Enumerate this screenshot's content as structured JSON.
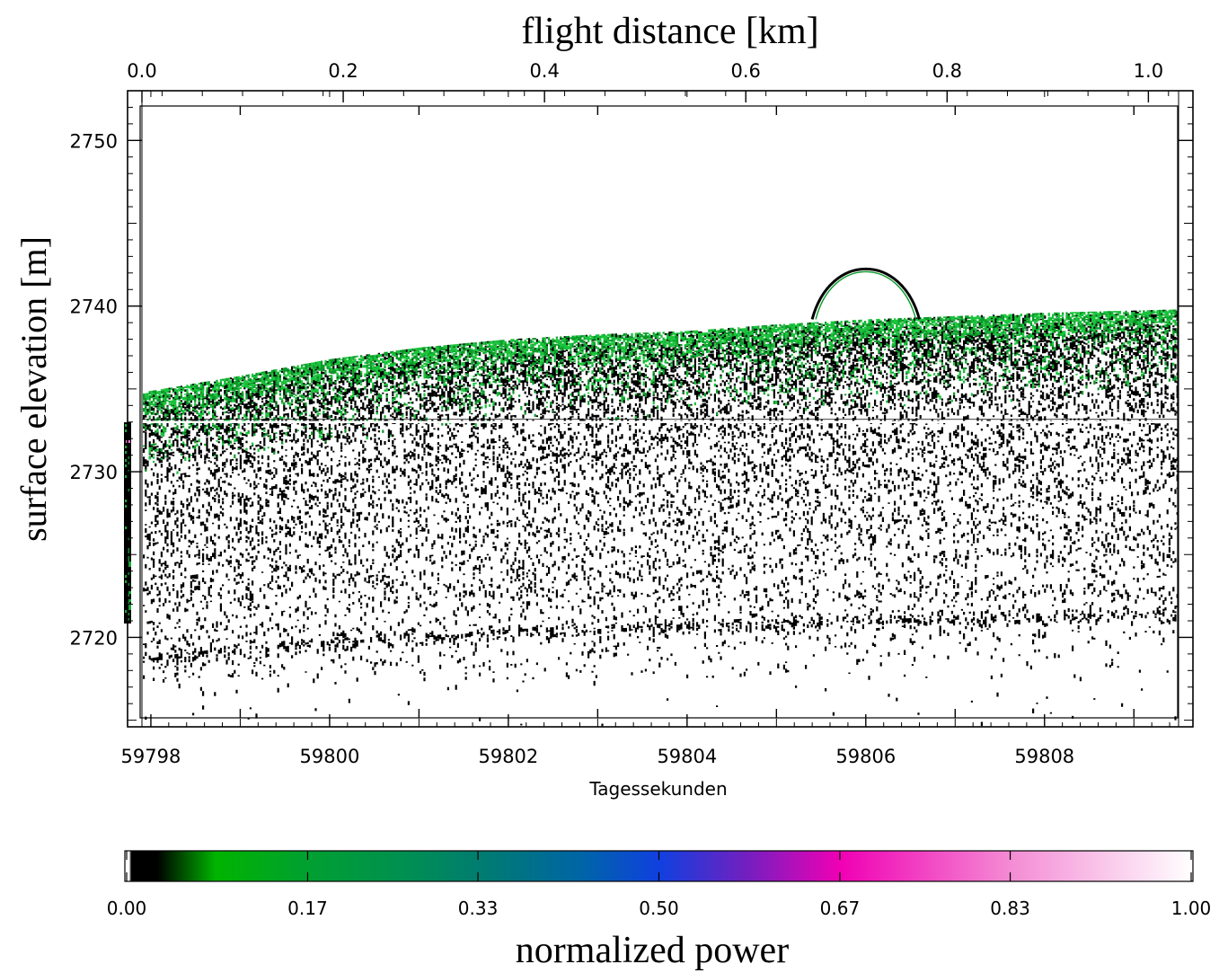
{
  "chart_data": {
    "type": "heatmap",
    "title": "",
    "top_axis": {
      "label": "flight distance [km]",
      "range": [
        0.0,
        1.03
      ],
      "ticks": [
        0.0,
        0.2,
        0.4,
        0.6,
        0.8,
        1.0
      ],
      "tick_labels": [
        "0.0",
        "0.2",
        "0.4",
        "0.6",
        "0.8",
        "1.0"
      ]
    },
    "bottom_axis": {
      "label": "Tagessekunden",
      "range": [
        59797.9,
        59809.5
      ],
      "ticks": [
        59798,
        59800,
        59802,
        59804,
        59806,
        59808
      ],
      "tick_labels": [
        "59798",
        "59800",
        "59802",
        "59804",
        "59806",
        "59808"
      ]
    },
    "y_axis": {
      "label": "surface elevation [m]",
      "range": [
        2714.6,
        2753.0
      ],
      "ticks": [
        2720,
        2730,
        2740,
        2750
      ],
      "tick_labels": [
        "2720",
        "2730",
        "2740",
        "2750"
      ]
    },
    "colorbar": {
      "label": "normalized power",
      "range": [
        0.0,
        1.0
      ],
      "ticks": [
        0.0,
        0.17,
        0.33,
        0.5,
        0.67,
        0.83,
        1.0
      ],
      "tick_labels": [
        "0.00",
        "0.17",
        "0.33",
        "0.50",
        "0.67",
        "0.83",
        "1.00"
      ],
      "colors": [
        "#ffffff",
        "#000000",
        "#00b400",
        "#009040",
        "#007070",
        "#0060c0",
        "#3c28d0",
        "#8c14b8",
        "#f000b4",
        "#f070c8",
        "#ffffff"
      ]
    },
    "features": {
      "surface_top": [
        {
          "x": 59797.9,
          "y": 2734.8
        },
        {
          "x": 59799.0,
          "y": 2735.8
        },
        {
          "x": 59800.0,
          "y": 2736.8
        },
        {
          "x": 59801.0,
          "y": 2737.5
        },
        {
          "x": 59802.0,
          "y": 2738.0
        },
        {
          "x": 59803.0,
          "y": 2738.3
        },
        {
          "x": 59804.0,
          "y": 2738.5
        },
        {
          "x": 59805.0,
          "y": 2738.9
        },
        {
          "x": 59806.0,
          "y": 2739.2
        },
        {
          "x": 59807.0,
          "y": 2739.4
        },
        {
          "x": 59808.0,
          "y": 2739.6
        },
        {
          "x": 59809.5,
          "y": 2739.8
        }
      ],
      "reference_line_y": 2733.0,
      "arc": {
        "x_start": 59805.4,
        "x_peak": 59806.0,
        "x_end": 59806.6,
        "y_base": 2739.2,
        "y_peak": 2742.6
      },
      "deep_layer": [
        {
          "x": 59798.0,
          "y": 2718.8
        },
        {
          "x": 59800.0,
          "y": 2719.8
        },
        {
          "x": 59802.0,
          "y": 2720.3
        },
        {
          "x": 59804.0,
          "y": 2720.7
        },
        {
          "x": 59806.0,
          "y": 2721.1
        },
        {
          "x": 59808.0,
          "y": 2721.3
        },
        {
          "x": 59809.5,
          "y": 2721.5
        }
      ],
      "upper_layer": [
        {
          "x": 59798.0,
          "y": 2725.5
        },
        {
          "x": 59801.0,
          "y": 2723.0
        },
        {
          "x": 59804.0,
          "y": 2722.6
        },
        {
          "x": 59809.5,
          "y": 2722.8
        }
      ]
    }
  }
}
